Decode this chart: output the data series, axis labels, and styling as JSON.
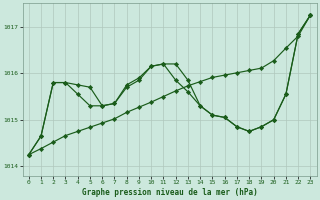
{
  "title": "Graphe pression niveau de la mer (hPa)",
  "background_color": "#cce8dd",
  "plot_bg_color": "#cce8dd",
  "grid_color": "#b0c8bc",
  "line_color": "#1a5c1a",
  "marker_color": "#1a5c1a",
  "xlim": [
    -0.5,
    23.5
  ],
  "ylim": [
    1013.8,
    1017.5
  ],
  "yticks": [
    1014,
    1015,
    1016,
    1017
  ],
  "xticks": [
    0,
    1,
    2,
    3,
    4,
    5,
    6,
    7,
    8,
    9,
    10,
    11,
    12,
    13,
    14,
    15,
    16,
    17,
    18,
    19,
    20,
    21,
    22,
    23
  ],
  "line1": [
    1014.25,
    1014.65,
    1015.8,
    1015.8,
    1015.75,
    1015.7,
    1015.3,
    1015.35,
    1015.75,
    1015.9,
    1016.15,
    1016.2,
    1016.2,
    1015.85,
    1015.3,
    1015.1,
    1015.05,
    1014.85,
    1014.75,
    1014.85,
    1015.0,
    1015.55,
    1016.85,
    1017.25
  ],
  "line2": [
    1014.25,
    1014.65,
    1015.8,
    1015.8,
    1015.55,
    1015.3,
    1015.3,
    1015.35,
    1015.7,
    1015.85,
    1016.15,
    1016.2,
    1015.85,
    1015.6,
    1015.3,
    1015.1,
    1015.05,
    1014.85,
    1014.75,
    1014.85,
    1015.0,
    1015.55,
    1016.85,
    1017.25
  ],
  "line3": [
    1014.25,
    1014.38,
    1014.52,
    1014.66,
    1014.75,
    1014.84,
    1014.93,
    1015.02,
    1015.16,
    1015.27,
    1015.38,
    1015.5,
    1015.62,
    1015.73,
    1015.82,
    1015.91,
    1015.96,
    1016.01,
    1016.06,
    1016.11,
    1016.27,
    1016.54,
    1016.8,
    1017.25
  ]
}
